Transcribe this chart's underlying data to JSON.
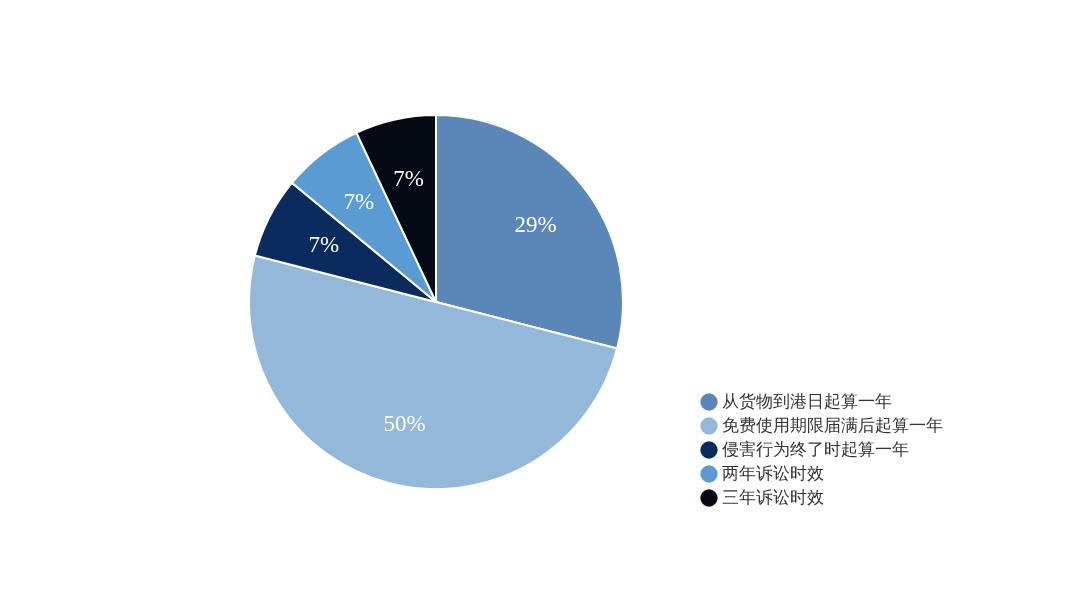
{
  "chart_data": {
    "type": "pie",
    "categories": [
      "从货物到港日起算一年",
      "免费使用期限届满后起算一年",
      "侵害行为终了时起算一年",
      "两年诉讼时效",
      "三年诉讼时效"
    ],
    "values": [
      29,
      50,
      7,
      7,
      7
    ],
    "colors": [
      "#5b86b8",
      "#94b8d9",
      "#0b2b5e",
      "#5b9bd3",
      "#050a14"
    ],
    "value_labels": [
      "29%",
      "50%",
      "7%",
      "7%",
      "7%"
    ],
    "legend": "bottom right"
  }
}
